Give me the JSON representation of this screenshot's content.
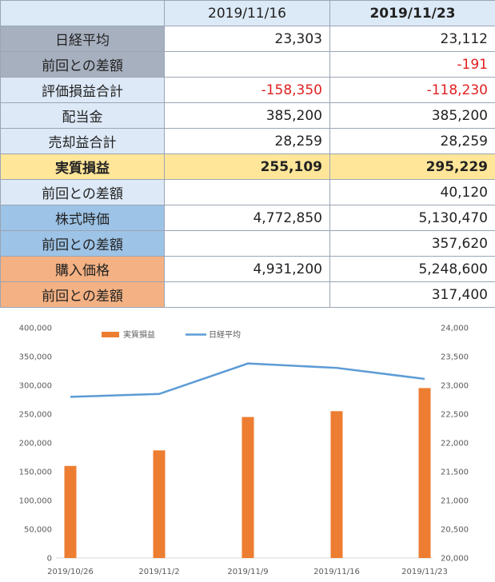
{
  "table": {
    "headers": [
      "",
      "2019/11/16",
      "2019/11/23"
    ],
    "rows": [
      {
        "label": "日経平均",
        "v1": "23,303",
        "v2": "23,112"
      },
      {
        "label": "前回との差額",
        "v1": "",
        "v2": "-191"
      },
      {
        "label": "評価損益合計",
        "v1": "-158,350",
        "v2": "-118,230"
      },
      {
        "label": "配当金",
        "v1": "385,200",
        "v2": "385,200"
      },
      {
        "label": "売却益合計",
        "v1": "28,259",
        "v2": "28,259"
      },
      {
        "label": "実質損益",
        "v1": "255,109",
        "v2": "295,229"
      },
      {
        "label": "前回との差額",
        "v1": "",
        "v2": "40,120"
      },
      {
        "label": "株式時価",
        "v1": "4,772,850",
        "v2": "5,130,470"
      },
      {
        "label": "前回との差額",
        "v1": "",
        "v2": "357,620"
      },
      {
        "label": "購入価格",
        "v1": "4,931,200",
        "v2": "5,248,600"
      },
      {
        "label": "前回との差額",
        "v1": "",
        "v2": "317,400"
      }
    ]
  },
  "colors": {
    "bar": "#ed7d31",
    "line": "#5b9bd5",
    "negative": "#e02020",
    "label_gray": "#a7b0bf",
    "label_lightblue": "#dde9f7",
    "label_yellow": "#ffe699",
    "label_blue": "#9dc3e6",
    "label_orange": "#f4b183"
  },
  "chart_data": {
    "type": "bar",
    "categories": [
      "2019/10/26",
      "2019/11/2",
      "2019/11/9",
      "2019/11/16",
      "2019/11/23"
    ],
    "series": [
      {
        "name": "実質損益",
        "type": "bar",
        "axis": "left",
        "values": [
          160000,
          187000,
          245000,
          255109,
          295229
        ]
      },
      {
        "name": "日経平均",
        "type": "line",
        "axis": "right",
        "values": [
          22800,
          22850,
          23380,
          23303,
          23112
        ]
      }
    ],
    "ylim_left": [
      0,
      400000
    ],
    "yticks_left": [
      "0",
      "50,000",
      "100,000",
      "150,000",
      "200,000",
      "250,000",
      "300,000",
      "350,000",
      "400,000"
    ],
    "ylim_right": [
      20000,
      24000
    ],
    "yticks_right": [
      "20,000",
      "20,500",
      "21,000",
      "21,500",
      "22,000",
      "22,500",
      "23,000",
      "23,500",
      "24,000"
    ],
    "legend_position": "top-left",
    "grid": false
  }
}
